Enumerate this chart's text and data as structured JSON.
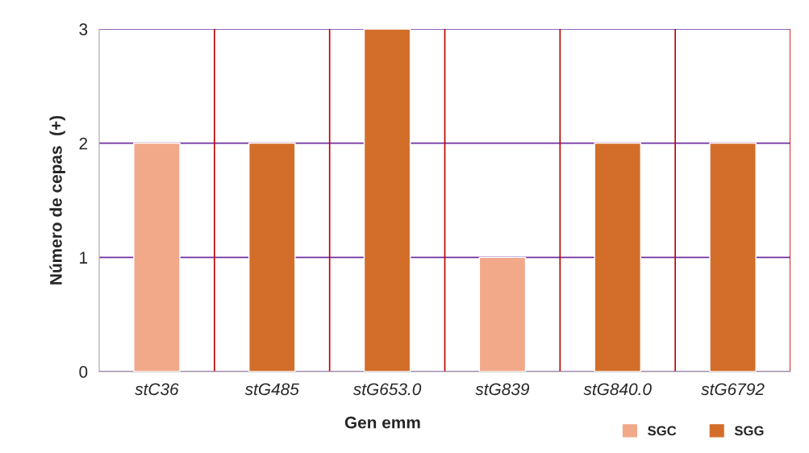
{
  "chart_data": {
    "type": "bar",
    "xlabel": "Gen emm",
    "ylabel": "Número de cepas  (+)",
    "categories": [
      "stC36",
      "stG485",
      "stG653.0",
      "stG839",
      "stG840.0",
      "stG6792"
    ],
    "stacked": true,
    "series": [
      {
        "name": "SGC",
        "color": "#f1a98a",
        "values": [
          2,
          null,
          null,
          1,
          null,
          null
        ]
      },
      {
        "name": "SGG",
        "color": "#d36e2a",
        "values": [
          null,
          2,
          3,
          null,
          2,
          2
        ]
      }
    ],
    "ylim": [
      0,
      3
    ],
    "yticks": [
      0,
      1,
      2,
      3
    ],
    "grid": true,
    "legend": "bottom right"
  }
}
